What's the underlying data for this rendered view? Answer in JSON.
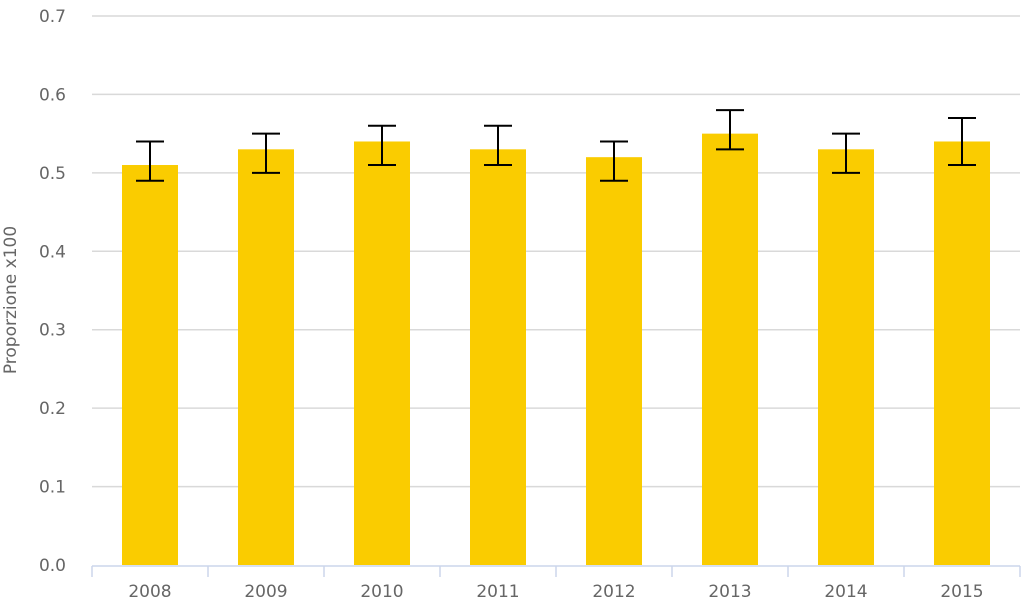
{
  "chart_data": {
    "type": "bar",
    "title": "",
    "xlabel": "",
    "ylabel": "Proporzione x100",
    "ylim": [
      0,
      0.7
    ],
    "yticks": [
      "0.0",
      "0.1",
      "0.2",
      "0.3",
      "0.4",
      "0.5",
      "0.6",
      "0.7"
    ],
    "grid": true,
    "categories": [
      "2008",
      "2009",
      "2010",
      "2011",
      "2012",
      "2013",
      "2014",
      "2015"
    ],
    "values": [
      0.51,
      0.53,
      0.54,
      0.53,
      0.52,
      0.55,
      0.53,
      0.54
    ],
    "error_low": [
      0.49,
      0.5,
      0.51,
      0.51,
      0.49,
      0.53,
      0.5,
      0.51
    ],
    "error_high": [
      0.54,
      0.55,
      0.56,
      0.56,
      0.54,
      0.58,
      0.55,
      0.57
    ],
    "colors": {
      "bar": "#FACC00",
      "error": "#000000",
      "grid": "#D9D9D9",
      "axis": "#CCD6EB"
    }
  }
}
